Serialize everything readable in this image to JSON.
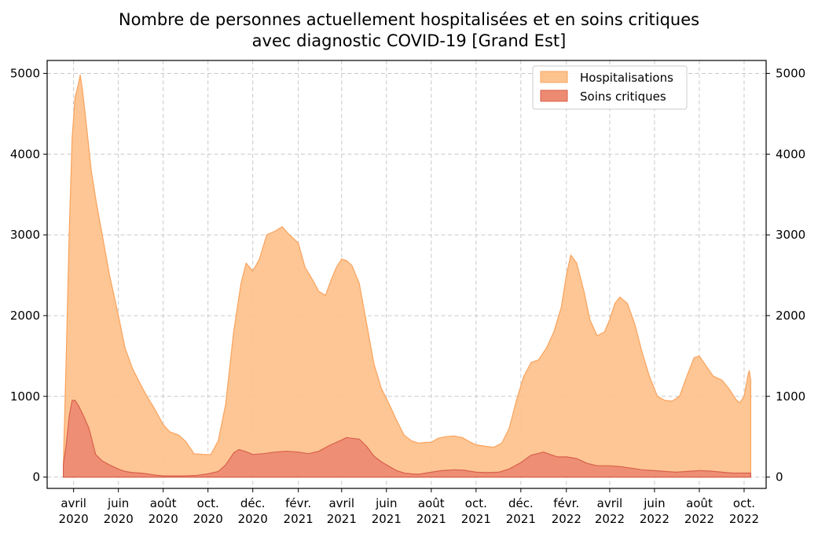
{
  "chart_data": {
    "type": "area",
    "title_line1": "Nombre de personnes actuellement hospitalisées et en soins critiques",
    "title_line2": "avec diagnostic COVID-19 [Grand Est]",
    "xlabel": "",
    "ylabel": "",
    "ylim": [
      -140,
      5160
    ],
    "xlim": [
      "2020-02-25",
      "2022-10-31"
    ],
    "y_ticks": [
      0,
      1000,
      2000,
      3000,
      4000,
      5000
    ],
    "secondary_y_axis": true,
    "grid": true,
    "legend_placement": "top-right",
    "x_ticks": [
      {
        "date": "2020-04-01",
        "line1": "avril",
        "line2": "2020"
      },
      {
        "date": "2020-06-01",
        "line1": "juin",
        "line2": "2020"
      },
      {
        "date": "2020-08-01",
        "line1": "août",
        "line2": "2020"
      },
      {
        "date": "2020-10-01",
        "line1": "oct.",
        "line2": "2020"
      },
      {
        "date": "2020-12-01",
        "line1": "déc.",
        "line2": "2020"
      },
      {
        "date": "2021-02-01",
        "line1": "févr.",
        "line2": "2021"
      },
      {
        "date": "2021-04-01",
        "line1": "avril",
        "line2": "2021"
      },
      {
        "date": "2021-06-01",
        "line1": "juin",
        "line2": "2021"
      },
      {
        "date": "2021-08-01",
        "line1": "août",
        "line2": "2021"
      },
      {
        "date": "2021-10-01",
        "line1": "oct.",
        "line2": "2021"
      },
      {
        "date": "2021-12-01",
        "line1": "déc.",
        "line2": "2021"
      },
      {
        "date": "2022-02-01",
        "line1": "févr.",
        "line2": "2022"
      },
      {
        "date": "2022-04-01",
        "line1": "avril",
        "line2": "2022"
      },
      {
        "date": "2022-06-01",
        "line1": "juin",
        "line2": "2022"
      },
      {
        "date": "2022-08-01",
        "line1": "août",
        "line2": "2022"
      },
      {
        "date": "2022-10-01",
        "line1": "oct.",
        "line2": "2022"
      }
    ],
    "series": [
      {
        "name": "Hospitalisations",
        "fill": "#fdc38e",
        "edge": "#f9a35d",
        "points": [
          [
            "2020-03-18",
            150
          ],
          [
            "2020-03-22",
            1500
          ],
          [
            "2020-03-26",
            3000
          ],
          [
            "2020-03-30",
            4200
          ],
          [
            "2020-04-03",
            4700
          ],
          [
            "2020-04-07",
            4850
          ],
          [
            "2020-04-10",
            4980
          ],
          [
            "2020-04-13",
            4800
          ],
          [
            "2020-04-18",
            4400
          ],
          [
            "2020-04-25",
            3800
          ],
          [
            "2020-05-02",
            3400
          ],
          [
            "2020-05-10",
            3000
          ],
          [
            "2020-05-20",
            2500
          ],
          [
            "2020-06-01",
            2000
          ],
          [
            "2020-06-10",
            1600
          ],
          [
            "2020-06-20",
            1350
          ],
          [
            "2020-07-01",
            1150
          ],
          [
            "2020-07-10",
            1000
          ],
          [
            "2020-07-20",
            850
          ],
          [
            "2020-08-01",
            650
          ],
          [
            "2020-08-10",
            560
          ],
          [
            "2020-08-22",
            520
          ],
          [
            "2020-09-01",
            440
          ],
          [
            "2020-09-12",
            290
          ],
          [
            "2020-09-25",
            280
          ],
          [
            "2020-10-05",
            280
          ],
          [
            "2020-10-15",
            450
          ],
          [
            "2020-10-25",
            900
          ],
          [
            "2020-11-05",
            1800
          ],
          [
            "2020-11-15",
            2400
          ],
          [
            "2020-11-22",
            2650
          ],
          [
            "2020-12-01",
            2550
          ],
          [
            "2020-12-10",
            2700
          ],
          [
            "2020-12-20",
            3000
          ],
          [
            "2021-01-01",
            3050
          ],
          [
            "2021-01-10",
            3100
          ],
          [
            "2021-01-20",
            3000
          ],
          [
            "2021-02-01",
            2900
          ],
          [
            "2021-02-10",
            2600
          ],
          [
            "2021-02-20",
            2450
          ],
          [
            "2021-03-01",
            2300
          ],
          [
            "2021-03-10",
            2250
          ],
          [
            "2021-03-18",
            2450
          ],
          [
            "2021-03-25",
            2600
          ],
          [
            "2021-04-01",
            2700
          ],
          [
            "2021-04-08",
            2680
          ],
          [
            "2021-04-15",
            2620
          ],
          [
            "2021-04-25",
            2400
          ],
          [
            "2021-05-05",
            1900
          ],
          [
            "2021-05-15",
            1400
          ],
          [
            "2021-05-25",
            1100
          ],
          [
            "2021-06-05",
            900
          ],
          [
            "2021-06-15",
            700
          ],
          [
            "2021-06-25",
            520
          ],
          [
            "2021-07-05",
            450
          ],
          [
            "2021-07-15",
            420
          ],
          [
            "2021-07-25",
            430
          ],
          [
            "2021-08-01",
            430
          ],
          [
            "2021-08-10",
            480
          ],
          [
            "2021-08-20",
            500
          ],
          [
            "2021-09-01",
            510
          ],
          [
            "2021-09-12",
            490
          ],
          [
            "2021-09-22",
            440
          ],
          [
            "2021-10-01",
            400
          ],
          [
            "2021-10-15",
            380
          ],
          [
            "2021-10-25",
            370
          ],
          [
            "2021-11-05",
            420
          ],
          [
            "2021-11-15",
            600
          ],
          [
            "2021-11-25",
            950
          ],
          [
            "2021-12-05",
            1250
          ],
          [
            "2021-12-15",
            1420
          ],
          [
            "2021-12-25",
            1450
          ],
          [
            "2022-01-05",
            1600
          ],
          [
            "2022-01-15",
            1800
          ],
          [
            "2022-01-25",
            2100
          ],
          [
            "2022-02-01",
            2500
          ],
          [
            "2022-02-07",
            2750
          ],
          [
            "2022-02-15",
            2650
          ],
          [
            "2022-02-25",
            2300
          ],
          [
            "2022-03-05",
            1950
          ],
          [
            "2022-03-15",
            1750
          ],
          [
            "2022-03-25",
            1800
          ],
          [
            "2022-04-01",
            1950
          ],
          [
            "2022-04-08",
            2150
          ],
          [
            "2022-04-15",
            2230
          ],
          [
            "2022-04-25",
            2150
          ],
          [
            "2022-05-05",
            1900
          ],
          [
            "2022-05-15",
            1550
          ],
          [
            "2022-05-25",
            1250
          ],
          [
            "2022-06-05",
            1000
          ],
          [
            "2022-06-15",
            950
          ],
          [
            "2022-06-25",
            940
          ],
          [
            "2022-07-05",
            1000
          ],
          [
            "2022-07-15",
            1250
          ],
          [
            "2022-07-25",
            1480
          ],
          [
            "2022-08-01",
            1500
          ],
          [
            "2022-08-10",
            1380
          ],
          [
            "2022-08-20",
            1250
          ],
          [
            "2022-09-01",
            1200
          ],
          [
            "2022-09-10",
            1100
          ],
          [
            "2022-09-20",
            960
          ],
          [
            "2022-09-25",
            920
          ],
          [
            "2022-10-01",
            1000
          ],
          [
            "2022-10-06",
            1250
          ],
          [
            "2022-10-08",
            1320
          ],
          [
            "2022-10-10",
            1200
          ]
        ]
      },
      {
        "name": "Soins critiques",
        "fill": "#ed8a72",
        "edge": "#d9604b",
        "points": [
          [
            "2020-03-18",
            150
          ],
          [
            "2020-03-22",
            400
          ],
          [
            "2020-03-26",
            750
          ],
          [
            "2020-03-30",
            950
          ],
          [
            "2020-04-03",
            950
          ],
          [
            "2020-04-08",
            880
          ],
          [
            "2020-04-15",
            750
          ],
          [
            "2020-04-22",
            600
          ],
          [
            "2020-05-01",
            280
          ],
          [
            "2020-05-10",
            200
          ],
          [
            "2020-05-20",
            150
          ],
          [
            "2020-06-01",
            100
          ],
          [
            "2020-06-10",
            70
          ],
          [
            "2020-06-20",
            55
          ],
          [
            "2020-07-01",
            50
          ],
          [
            "2020-07-10",
            40
          ],
          [
            "2020-07-20",
            25
          ],
          [
            "2020-08-01",
            15
          ],
          [
            "2020-08-15",
            15
          ],
          [
            "2020-09-01",
            15
          ],
          [
            "2020-09-15",
            20
          ],
          [
            "2020-10-01",
            40
          ],
          [
            "2020-10-15",
            70
          ],
          [
            "2020-10-25",
            150
          ],
          [
            "2020-11-05",
            300
          ],
          [
            "2020-11-12",
            340
          ],
          [
            "2020-11-20",
            320
          ],
          [
            "2020-12-01",
            280
          ],
          [
            "2020-12-15",
            290
          ],
          [
            "2021-01-01",
            310
          ],
          [
            "2021-01-15",
            320
          ],
          [
            "2021-02-01",
            310
          ],
          [
            "2021-02-15",
            290
          ],
          [
            "2021-03-01",
            320
          ],
          [
            "2021-03-15",
            390
          ],
          [
            "2021-04-01",
            460
          ],
          [
            "2021-04-08",
            490
          ],
          [
            "2021-04-15",
            480
          ],
          [
            "2021-04-25",
            470
          ],
          [
            "2021-05-05",
            380
          ],
          [
            "2021-05-15",
            260
          ],
          [
            "2021-05-25",
            190
          ],
          [
            "2021-06-05",
            130
          ],
          [
            "2021-06-15",
            80
          ],
          [
            "2021-06-25",
            50
          ],
          [
            "2021-07-05",
            40
          ],
          [
            "2021-07-15",
            35
          ],
          [
            "2021-08-01",
            60
          ],
          [
            "2021-08-15",
            80
          ],
          [
            "2021-09-01",
            90
          ],
          [
            "2021-09-15",
            85
          ],
          [
            "2021-10-01",
            60
          ],
          [
            "2021-10-15",
            55
          ],
          [
            "2021-11-01",
            60
          ],
          [
            "2021-11-15",
            100
          ],
          [
            "2021-12-01",
            180
          ],
          [
            "2021-12-15",
            270
          ],
          [
            "2022-01-01",
            310
          ],
          [
            "2022-01-10",
            280
          ],
          [
            "2022-01-20",
            250
          ],
          [
            "2022-02-01",
            250
          ],
          [
            "2022-02-15",
            230
          ],
          [
            "2022-03-01",
            170
          ],
          [
            "2022-03-15",
            140
          ],
          [
            "2022-04-01",
            140
          ],
          [
            "2022-04-15",
            130
          ],
          [
            "2022-05-01",
            110
          ],
          [
            "2022-05-15",
            90
          ],
          [
            "2022-06-01",
            80
          ],
          [
            "2022-06-15",
            70
          ],
          [
            "2022-07-01",
            60
          ],
          [
            "2022-07-15",
            70
          ],
          [
            "2022-08-01",
            80
          ],
          [
            "2022-08-15",
            75
          ],
          [
            "2022-09-01",
            60
          ],
          [
            "2022-09-15",
            50
          ],
          [
            "2022-10-01",
            50
          ],
          [
            "2022-10-10",
            50
          ]
        ]
      }
    ]
  }
}
